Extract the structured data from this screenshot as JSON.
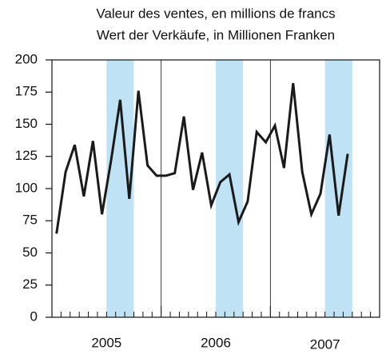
{
  "chart_data": {
    "type": "line",
    "title": "Valeur des ventes, en millions de francs",
    "subtitle": "Wert der Verkäufe, in Millionen Franken",
    "categories": [
      null,
      null,
      null,
      null,
      null,
      null,
      null,
      null,
      null,
      null,
      null,
      null,
      null,
      null,
      null,
      null,
      null,
      null,
      null,
      null,
      null,
      null,
      null,
      null,
      null,
      null,
      null,
      null,
      null,
      null,
      null,
      null,
      null
    ],
    "years": [
      "2005",
      "2006",
      "2007"
    ],
    "values": [
      65,
      113,
      134,
      94,
      137,
      80,
      122,
      169,
      92,
      176,
      118,
      110,
      110,
      112,
      156,
      99,
      128,
      87,
      105,
      111,
      74,
      90,
      144,
      136,
      149,
      116,
      182,
      113,
      80,
      96,
      142,
      79,
      127
    ],
    "color": "#1a1a1a",
    "highlight_color": "#bfe3f5",
    "ylim": [
      0,
      200
    ],
    "yticks": [
      0,
      25,
      50,
      75,
      100,
      125,
      150,
      175,
      200
    ]
  }
}
